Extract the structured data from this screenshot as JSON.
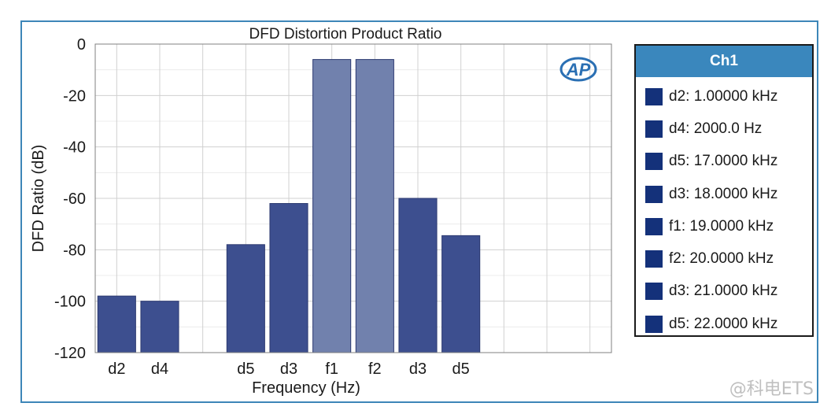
{
  "chart_data": {
    "type": "bar",
    "title": "DFD Distortion Product Ratio",
    "xlabel": "Frequency (Hz)",
    "ylabel": "DFD Ratio (dB)",
    "ylim": [
      -120,
      0
    ],
    "yticks": [
      0,
      -20,
      -40,
      -60,
      -80,
      -100,
      -120
    ],
    "grid": true,
    "legend_position": "right",
    "categories": [
      "d2",
      "d4",
      "d5",
      "d3",
      "f1",
      "f2",
      "d3",
      "d5"
    ],
    "slots": [
      0,
      1,
      3,
      4,
      5,
      6,
      7,
      8
    ],
    "slot_count": 12,
    "values": [
      -98,
      -100,
      -78,
      -62,
      -6,
      -6,
      -60,
      -74.5
    ],
    "bar_colors": [
      "#3d4f8f",
      "#3d4f8f",
      "#3d4f8f",
      "#3d4f8f",
      "#7181ad",
      "#7181ad",
      "#3d4f8f",
      "#3d4f8f"
    ],
    "logo_text": "AP"
  },
  "legend": {
    "title": "Ch1",
    "swatch_color": "#14317a",
    "items": [
      "d2: 1.00000 kHz",
      "d4: 2000.0 Hz",
      "d5: 17.0000 kHz",
      "d3: 18.0000 kHz",
      "f1: 19.0000 kHz",
      "f2: 20.0000 kHz",
      "d3: 21.0000 kHz",
      "d5: 22.0000 kHz"
    ]
  },
  "watermark": "@科电ETS",
  "colors": {
    "frame": "#3d86b8",
    "legend_header": "#3a87bd",
    "grid": "#d0d0d0",
    "grid_minor": "#ececec"
  }
}
